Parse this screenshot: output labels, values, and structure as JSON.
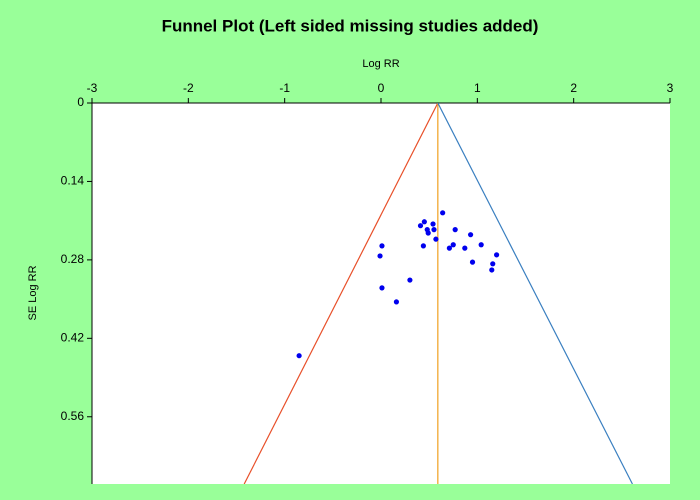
{
  "chart_data": {
    "type": "scatter",
    "title": "Funnel Plot (Left sided missing studies added)",
    "x_label": "Log RR",
    "y_label": "SE Log RR",
    "xlim": [
      -3,
      3
    ],
    "xticks": [
      -3,
      -2,
      -1,
      0,
      1,
      2,
      3
    ],
    "ylim": [
      0,
      0.68
    ],
    "yticks": [
      0,
      0.14,
      0.28,
      0.42,
      0.56
    ],
    "y_inverted": true,
    "x_axis_position": "top",
    "points": {
      "color": "#0000ee",
      "x": [
        -0.85,
        0.64,
        0.41,
        0.45,
        0.48,
        0.49,
        0.54,
        0.55,
        0.57,
        0.44,
        0.01,
        -0.01,
        0.77,
        0.75,
        0.71,
        0.87,
        0.93,
        0.95,
        1.04,
        1.2,
        1.16,
        1.15,
        0.3,
        0.01,
        0.16
      ],
      "y": [
        0.451,
        0.196,
        0.219,
        0.212,
        0.226,
        0.232,
        0.216,
        0.226,
        0.243,
        0.255,
        0.255,
        0.273,
        0.226,
        0.253,
        0.259,
        0.259,
        0.235,
        0.284,
        0.253,
        0.271,
        0.287,
        0.298,
        0.316,
        0.33,
        0.355
      ]
    },
    "lines": [
      {
        "color": "#e8502a",
        "x": [
          0.59,
          -1.42
        ],
        "y": [
          0,
          0.68
        ]
      },
      {
        "color": "#f0a020",
        "x": [
          0.59,
          0.59
        ],
        "y": [
          0,
          0.68
        ]
      },
      {
        "color": "#3a7fc0",
        "x": [
          0.59,
          2.61
        ],
        "y": [
          0,
          0.68
        ]
      }
    ]
  }
}
